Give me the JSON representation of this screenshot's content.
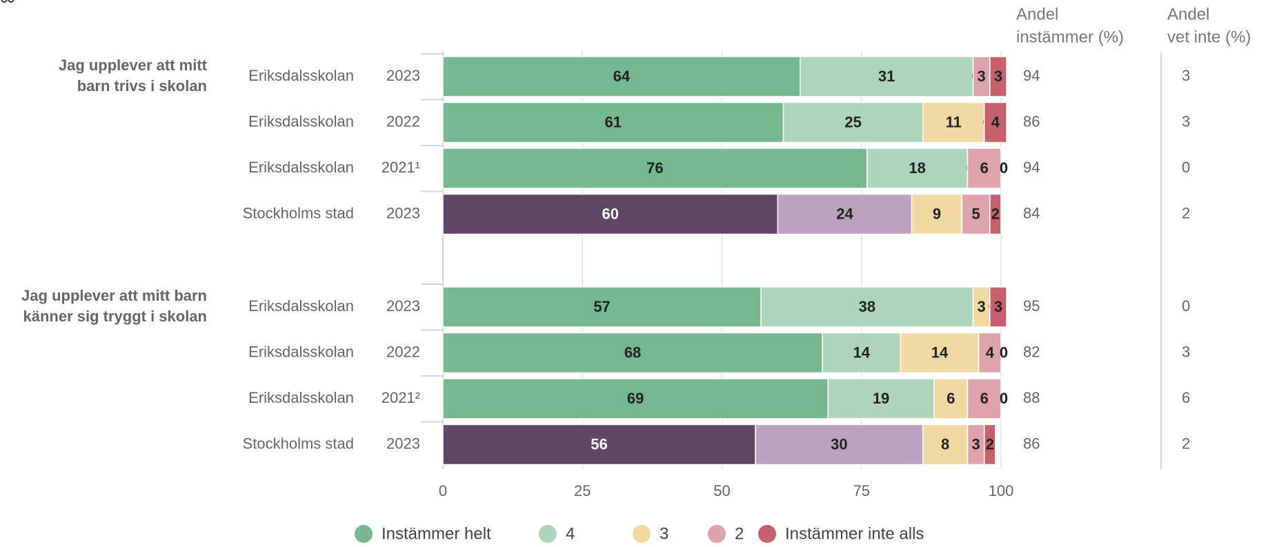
{
  "chart_data": {
    "type": "bar",
    "orientation": "horizontal",
    "stacked": true,
    "xlim": [
      0,
      100
    ],
    "x_ticks": [
      "0",
      "25",
      "50",
      "75",
      "100"
    ],
    "grid": true,
    "legend_position": "bottom",
    "legend": [
      {
        "name": "Instämmer helt",
        "color": "#75b78f"
      },
      {
        "name": "4",
        "color": "#acd5bb"
      },
      {
        "name": "3",
        "color": "#f1d9a2"
      },
      {
        "name": "2",
        "color": "#dea2aa"
      },
      {
        "name": "Instämmer inte alls",
        "color": "#c5616d"
      }
    ],
    "city_colors": [
      "#604665",
      "#bca2bf",
      "#f1d9a2",
      "#dea2aa",
      "#c5616d"
    ],
    "column_headers": [
      [
        "Andel",
        "instämmer (%)"
      ],
      [
        "Andel",
        "vet inte (%)"
      ]
    ],
    "groups": [
      {
        "question": [
          "Jag upplever att mitt",
          "barn trivs i skolan"
        ],
        "rows": [
          {
            "unit": "Eriksdalsskolan",
            "year": "2023",
            "city": false,
            "values": [
              64,
              31,
              0,
              3,
              3
            ],
            "labels": [
              "64",
              "31",
              "0",
              "3",
              "3"
            ],
            "agree": "94",
            "dont_know": "3"
          },
          {
            "unit": "Eriksdalsskolan",
            "year": "2022",
            "city": false,
            "values": [
              61,
              25,
              11,
              0,
              4
            ],
            "labels": [
              "61",
              "25",
              "11",
              "0",
              "4"
            ],
            "agree": "86",
            "dont_know": "3"
          },
          {
            "unit": "Eriksdalsskolan",
            "year": "2021¹",
            "city": false,
            "values": [
              76,
              18,
              0,
              6,
              0
            ],
            "labels": [
              "76",
              "18",
              "0",
              "6",
              "0"
            ],
            "agree": "94",
            "dont_know": "0"
          },
          {
            "unit": "Stockholms stad",
            "year": "2023",
            "city": true,
            "values": [
              60,
              24,
              9,
              5,
              2
            ],
            "labels": [
              "60",
              "24",
              "9",
              "5",
              "2"
            ],
            "agree": "84",
            "dont_know": "2"
          }
        ]
      },
      {
        "question": [
          "Jag upplever att mitt barn",
          "känner sig tryggt i skolan"
        ],
        "rows": [
          {
            "unit": "Eriksdalsskolan",
            "year": "2023",
            "city": false,
            "values": [
              57,
              38,
              3,
              0,
              3
            ],
            "labels": [
              "57",
              "38",
              "3",
              "0",
              "3"
            ],
            "agree": "95",
            "dont_know": "0"
          },
          {
            "unit": "Eriksdalsskolan",
            "year": "2022",
            "city": false,
            "values": [
              68,
              14,
              14,
              4,
              0
            ],
            "labels": [
              "68",
              "14",
              "14",
              "4",
              "0"
            ],
            "agree": "82",
            "dont_know": "3"
          },
          {
            "unit": "Eriksdalsskolan",
            "year": "2021²",
            "city": false,
            "values": [
              69,
              19,
              6,
              6,
              0
            ],
            "labels": [
              "69",
              "19",
              "6",
              "6",
              "0"
            ],
            "agree": "88",
            "dont_know": "6"
          },
          {
            "unit": "Stockholms stad",
            "year": "2023",
            "city": true,
            "values": [
              56,
              30,
              8,
              3,
              2
            ],
            "labels": [
              "56",
              "30",
              "8",
              "3",
              "2"
            ],
            "agree": "86",
            "dont_know": "2"
          }
        ]
      }
    ]
  }
}
